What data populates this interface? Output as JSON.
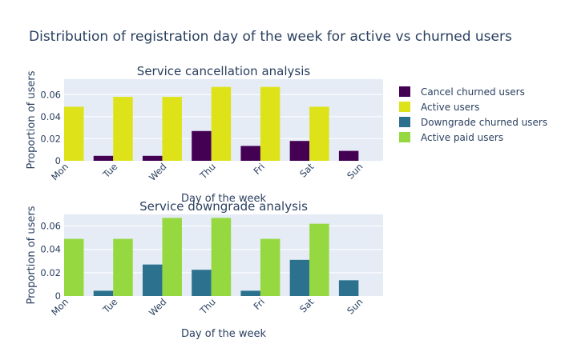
{
  "title": "Distribution of registration day of the week for active vs churned users",
  "legend": [
    {
      "name": "Cancel churned users",
      "color": "#440154"
    },
    {
      "name": "Active users",
      "color": "#dde318"
    },
    {
      "name": "Downgrade churned users",
      "color": "#2c728e"
    },
    {
      "name": "Active paid users",
      "color": "#95d840"
    }
  ],
  "chart_data": [
    {
      "type": "bar",
      "title": "Service cancellation analysis",
      "xlabel": "Day of the week",
      "ylabel": "Proportion of users",
      "categories": [
        "Mon",
        "Tue",
        "Wed",
        "Thu",
        "Fri",
        "Sat",
        "Sun"
      ],
      "ylim": [
        0,
        0.074
      ],
      "yticks": [
        0,
        0.02,
        0.04,
        0.06
      ],
      "ytick_labels": [
        "0",
        "0.02",
        "0.04",
        "0.06"
      ],
      "grid": true,
      "series": [
        {
          "name": "Cancel churned users",
          "color": "#440154",
          "values": [
            0,
            0.0045,
            0.0045,
            0.027,
            0.0135,
            0.018,
            0.009
          ]
        },
        {
          "name": "Active users",
          "color": "#dde318",
          "values": [
            0.049,
            0.058,
            0.058,
            0.067,
            0.067,
            0.049,
            0
          ]
        }
      ]
    },
    {
      "type": "bar",
      "title": "Service downgrade analysis",
      "xlabel": "Day of the week",
      "ylabel": "Proportion of users",
      "categories": [
        "Mon",
        "Tue",
        "Wed",
        "Thu",
        "Fri",
        "Sat",
        "Sun"
      ],
      "ylim": [
        0,
        0.07
      ],
      "yticks": [
        0,
        0.02,
        0.04,
        0.06
      ],
      "ytick_labels": [
        "0",
        "0.02",
        "0.04",
        "0.06"
      ],
      "grid": true,
      "series": [
        {
          "name": "Downgrade churned users",
          "color": "#2c728e",
          "values": [
            0,
            0.0045,
            0.027,
            0.0225,
            0.0045,
            0.031,
            0.0135
          ]
        },
        {
          "name": "Active paid users",
          "color": "#95d840",
          "values": [
            0.049,
            0.049,
            0.067,
            0.067,
            0.049,
            0.062,
            0
          ]
        }
      ]
    }
  ]
}
